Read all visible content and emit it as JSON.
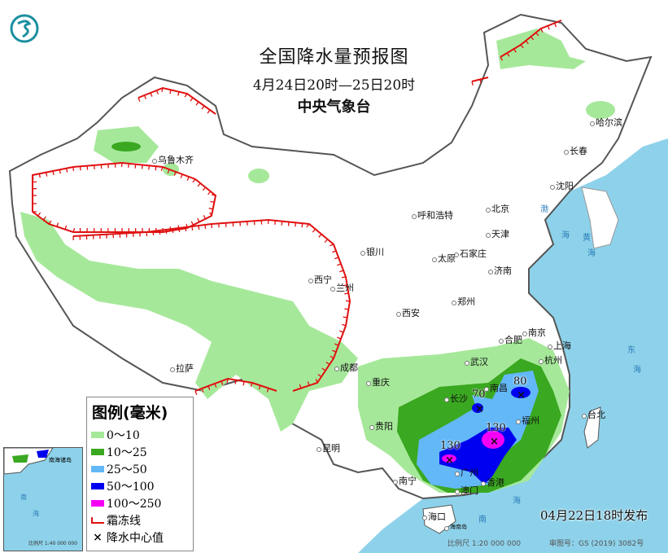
{
  "header": {
    "title": "全国降水量预报图",
    "period": "4月24日20时—25日20时",
    "agency": "中央气象台"
  },
  "legend": {
    "title": "图例(毫米)",
    "items": [
      {
        "label": "0～10",
        "color": "#a6e89a"
      },
      {
        "label": "10～25",
        "color": "#3aa820"
      },
      {
        "label": "25～50",
        "color": "#63b8f7"
      },
      {
        "label": "50～100",
        "color": "#0000f0"
      },
      {
        "label": "100～250",
        "color": "#f500f5"
      },
      {
        "label": "霜冻线",
        "color": "#e01010",
        "icon": "frost-line-icon"
      },
      {
        "label": "降水中心值",
        "color": "#111111",
        "icon": "cross-icon"
      }
    ]
  },
  "cities": [
    "乌鲁木齐",
    "哈尔滨",
    "长春",
    "沈阳",
    "呼和浩特",
    "北京",
    "天津",
    "石家庄",
    "太原",
    "济南",
    "银川",
    "西宁",
    "兰州",
    "郑州",
    "西安",
    "合肥",
    "南京",
    "上海",
    "武汉",
    "杭州",
    "成都",
    "重庆",
    "长沙",
    "南昌",
    "福州",
    "台北",
    "贵阳",
    "昆明",
    "拉萨",
    "南宁",
    "广州",
    "香港",
    "澳门",
    "海口"
  ],
  "precip_centers": [
    {
      "value": "70"
    },
    {
      "value": "80"
    },
    {
      "value": "130"
    },
    {
      "value": "130"
    }
  ],
  "sea_labels": [
    "渤",
    "海",
    "黄",
    "海",
    "东",
    "海",
    "南",
    "海"
  ],
  "island_label": "海南岛",
  "footer": {
    "issued": "04月22日18时发布",
    "scale": "比例尺 1:20 000 000",
    "approval": "审图号：GS (2019) 3082号"
  },
  "inset": {
    "labels": [
      "南海诸岛",
      "南",
      "海"
    ],
    "scale": "比例尺 1:40 000 000"
  },
  "colors": {
    "sea": "#8dd2ea",
    "land": "#ffffff",
    "border": "#555555"
  }
}
